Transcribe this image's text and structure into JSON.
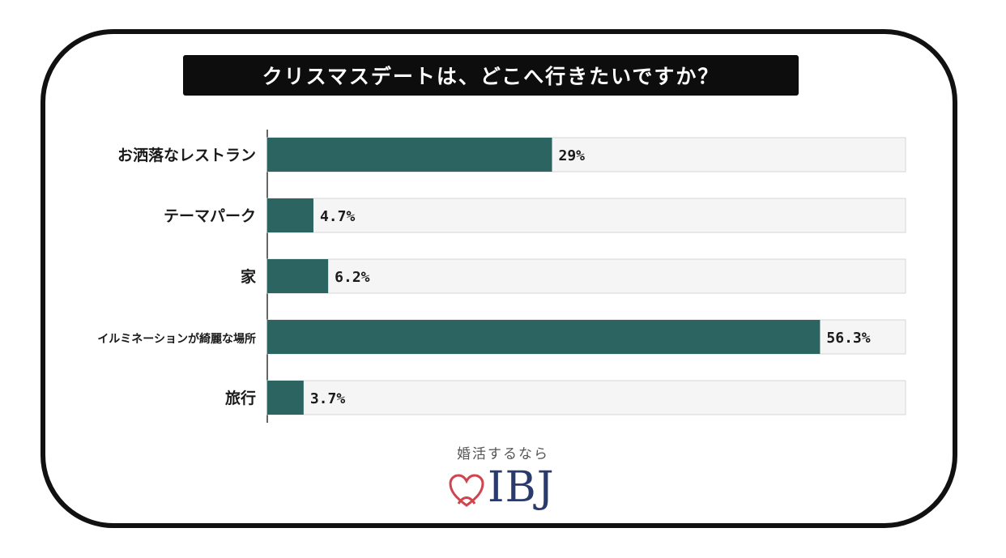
{
  "chart_data": {
    "type": "bar",
    "orientation": "horizontal",
    "title": "クリスマスデートは、どこへ行きたいですか？",
    "categories": [
      "お洒落なレストラン",
      "テーマパーク",
      "家",
      "イルミネーションが綺麗な場所",
      "旅行"
    ],
    "values": [
      29,
      4.7,
      6.2,
      56.3,
      3.7
    ],
    "value_labels": [
      "29%",
      "4.7%",
      "6.2%",
      "56.3%",
      "3.7%"
    ],
    "xlim": [
      0,
      66
    ],
    "grid": false,
    "legend": "none",
    "colors": {
      "bar": "#2b6460",
      "track": "#f5f5f5",
      "track_border": "#d6d6d6",
      "axis": "#333333"
    }
  },
  "brand": {
    "tagline": "婚活するなら",
    "logo_text": "IBJ",
    "logo_color": "#2a3a6e",
    "heart_color": "#d0444f",
    "icon": "heart-icon"
  }
}
